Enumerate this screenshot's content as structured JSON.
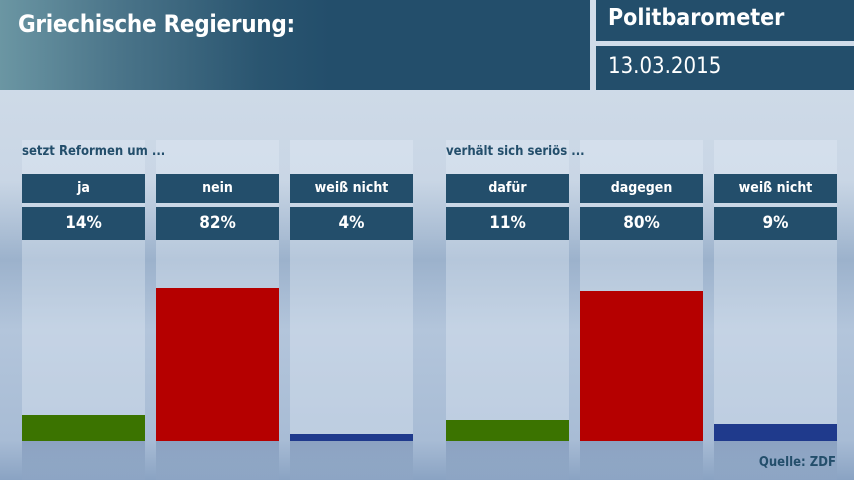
{
  "header": {
    "title": "Griechische Regierung:",
    "brand": "Politbarometer",
    "date": "13.03.2015"
  },
  "source": "Quelle: ZDF",
  "colors": {
    "header": "#234e6b",
    "positive": "#3b7300",
    "negative": "#b50000",
    "unknown": "#1f3a8c"
  },
  "chart_data": [
    {
      "type": "bar",
      "title": "setzt Reformen um ...",
      "categories": [
        "ja",
        "nein",
        "weiß nicht"
      ],
      "values": [
        14,
        82,
        4
      ],
      "labels": [
        "14%",
        "82%",
        "4%"
      ],
      "colors": [
        "#3b7300",
        "#b50000",
        "#1f3a8c"
      ],
      "ylim": [
        0,
        100
      ]
    },
    {
      "type": "bar",
      "title": "verhält sich seriös ...",
      "categories": [
        "dafür",
        "dagegen",
        "weiß nicht"
      ],
      "values": [
        11,
        80,
        9
      ],
      "labels": [
        "11%",
        "80%",
        "9%"
      ],
      "colors": [
        "#3b7300",
        "#b50000",
        "#1f3a8c"
      ],
      "ylim": [
        0,
        100
      ]
    }
  ]
}
